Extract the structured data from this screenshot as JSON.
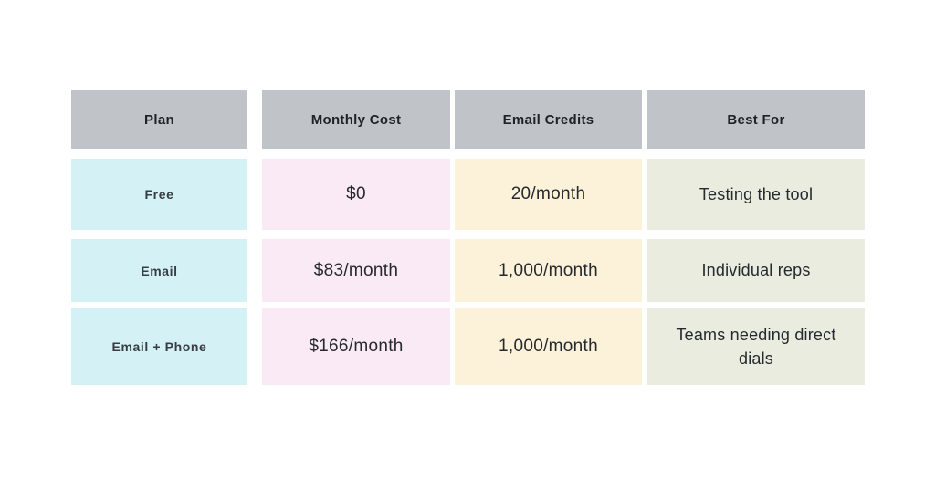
{
  "chart_data": {
    "type": "table",
    "columns": [
      "Plan",
      "Monthly Cost",
      "Email Credits",
      "Best For"
    ],
    "rows": [
      [
        "Free",
        "$0",
        "20/month",
        "Testing the tool"
      ],
      [
        "Email",
        "$83/month",
        "1,000/month",
        "Individual reps"
      ],
      [
        "Email + Phone",
        "$166/month",
        "1,000/month",
        "Teams needing direct dials"
      ]
    ],
    "colors": {
      "header_bg": "#c0c4c9",
      "plan_col_bg": "#d4f2f6",
      "monthly_cost_col_bg": "#f9eaf5",
      "email_credits_col_bg": "#fbf2d9",
      "best_for_col_bg": "#e9ecdf",
      "header_text": "#1f2227",
      "plan_text": "#383d43",
      "cell_text": "#26292e"
    }
  }
}
